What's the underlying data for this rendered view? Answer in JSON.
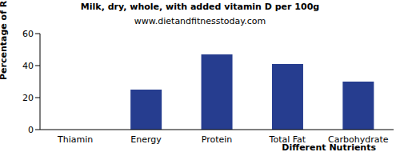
{
  "chart_data": {
    "type": "bar",
    "title": "Milk, dry, whole, with added vitamin D per 100g",
    "subtitle": "www.dietandfitnesstoday.com",
    "x_label": "Different Nutrients",
    "y_label": "Percentage of RDA (%)",
    "categories": [
      "Thiamin",
      "Energy",
      "Protein",
      "Total Fat",
      "Carbohydrate"
    ],
    "values": [
      0,
      25,
      47,
      41,
      30
    ],
    "color": "#263d8f",
    "ylim": [
      0,
      60
    ],
    "yticks": [
      0,
      20,
      40,
      60
    ],
    "grid": false
  }
}
